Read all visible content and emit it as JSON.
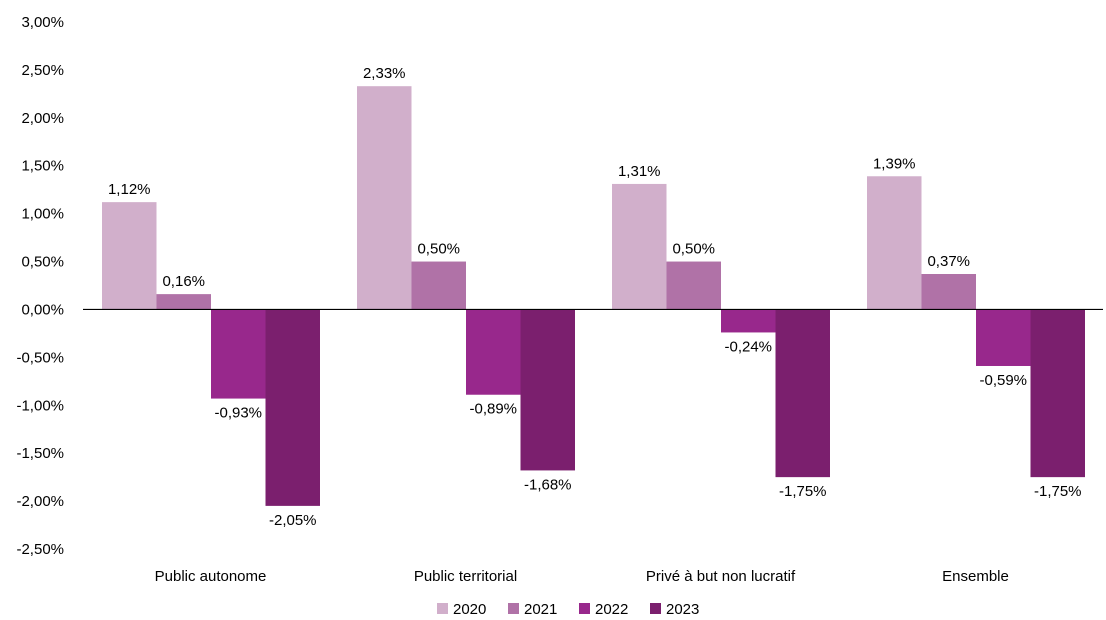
{
  "chart_data": {
    "type": "bar",
    "categories": [
      "Public autonome",
      "Public territorial",
      "Privé à but non lucratif",
      "Ensemble"
    ],
    "series": [
      {
        "name": "2020",
        "values": [
          1.12,
          2.33,
          1.31,
          1.39
        ],
        "labels": [
          "1,12%",
          "2,33%",
          "1,31%",
          "1,39%"
        ],
        "color": "#d1afcb"
      },
      {
        "name": "2021",
        "values": [
          0.16,
          0.5,
          0.5,
          0.37
        ],
        "labels": [
          "0,16%",
          "0,50%",
          "0,50%",
          "0,37%"
        ],
        "color": "#b072a7"
      },
      {
        "name": "2022",
        "values": [
          -0.93,
          -0.89,
          -0.24,
          -0.59
        ],
        "labels": [
          "-0,93%",
          "-0,89%",
          "-0,24%",
          "-0,59%"
        ],
        "color": "#98288c"
      },
      {
        "name": "2023",
        "values": [
          -2.05,
          -1.68,
          -1.75,
          -1.75
        ],
        "labels": [
          "-2,05%",
          "-1,68%",
          "-1,75%",
          "-1,75%"
        ],
        "color": "#7b1f6e"
      }
    ],
    "yticks": [
      3.0,
      2.5,
      2.0,
      1.5,
      1.0,
      0.5,
      0.0,
      -0.5,
      -1.0,
      -1.5,
      -2.0,
      -2.5
    ],
    "ytick_labels": [
      "3,00%",
      "2,50%",
      "2,00%",
      "1,50%",
      "1,00%",
      "0,50%",
      "0,00%",
      "-0,50%",
      "-1,00%",
      "-1,50%",
      "-2,00%",
      "-2,50%"
    ],
    "ylim": [
      -2.5,
      3.0
    ],
    "grid": false,
    "legend_position": "bottom",
    "title": "",
    "xlabel": "",
    "ylabel": ""
  }
}
